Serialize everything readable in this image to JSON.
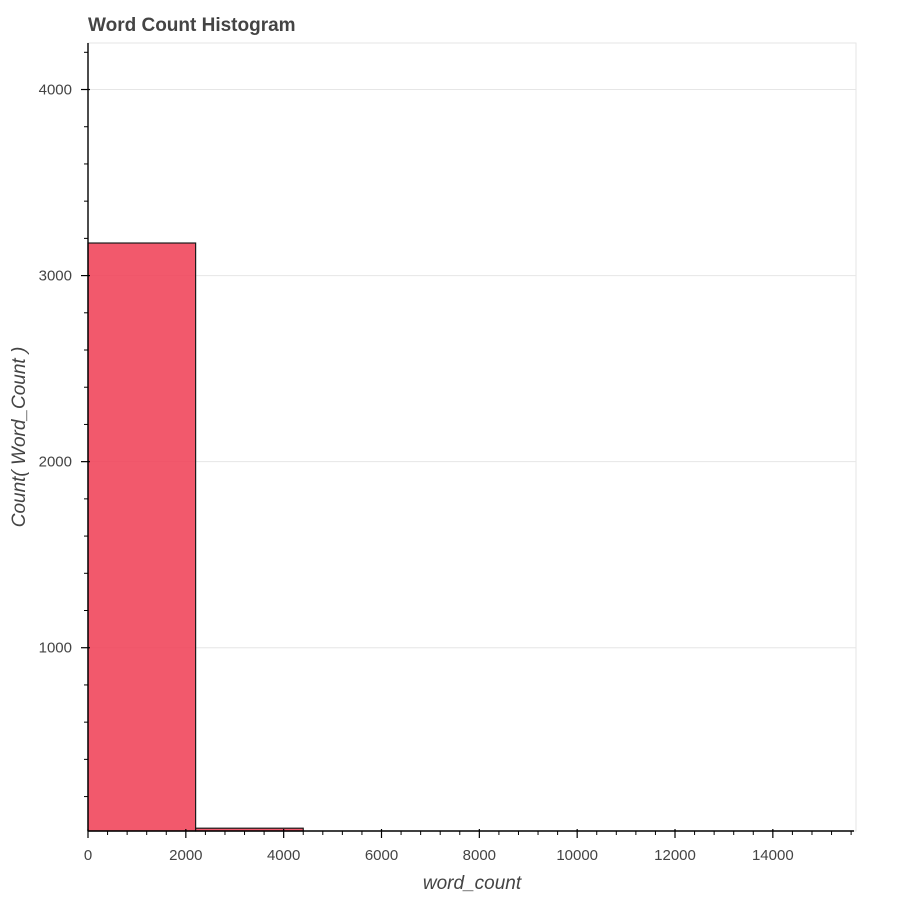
{
  "chart_data": {
    "type": "bar",
    "title": "Word Count Histogram",
    "xlabel": "word_count",
    "ylabel": "Count( Word_Count )",
    "xlim": [
      0,
      15700
    ],
    "ylim": [
      15,
      4250
    ],
    "x_ticks": [
      0,
      2000,
      4000,
      6000,
      8000,
      10000,
      12000,
      14000
    ],
    "y_ticks": [
      1000,
      2000,
      3000,
      4000
    ],
    "grid": true,
    "legend": "none",
    "bar_color": "#f04258",
    "bar_edge_color": "#1a1a1a",
    "bins": [
      {
        "x0": 0,
        "x1": 2200,
        "count": 3175
      },
      {
        "x0": 2200,
        "x1": 4400,
        "count": 30
      }
    ]
  }
}
